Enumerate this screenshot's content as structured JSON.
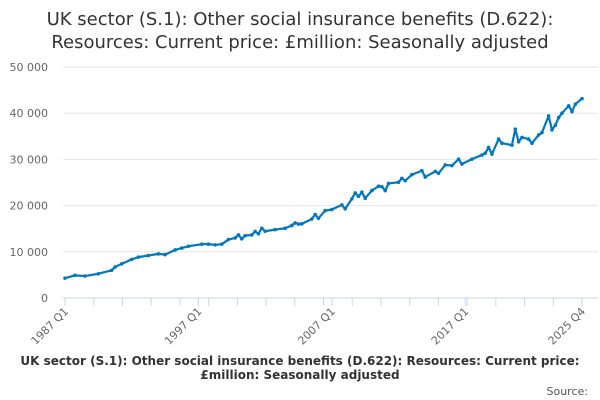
{
  "chart_data": {
    "type": "line",
    "title": "UK sector (S.1): Other social insurance benefits (D.622): Resources: Current price: £million: Seasonally adjusted",
    "footer_title": "UK sector (S.1): Other social insurance benefits (D.622): Resources: Current price: £million: Seasonally adjusted",
    "source_label": "Source:",
    "xlabel": "",
    "ylabel": "",
    "ylim": [
      0,
      50000
    ],
    "yticks": [
      0,
      10000,
      20000,
      30000,
      40000,
      50000
    ],
    "ytick_labels": [
      "0",
      "10 000",
      "20 000",
      "30 000",
      "40 000",
      "50 000"
    ],
    "xrange": [
      "1987 Q1",
      "2025 Q4"
    ],
    "xtick_labels": [
      "1987 Q1",
      "1997 Q1",
      "2007 Q1",
      "2017 Q1",
      "2025 Q4"
    ],
    "grid": true,
    "legend": "none",
    "color": "#0077c0",
    "points": [
      [
        "1987 Q1",
        4300
      ],
      [
        "1987 Q4",
        4900
      ],
      [
        "1988 Q3",
        4750
      ],
      [
        "1989 Q3",
        5250
      ],
      [
        "1990 Q3",
        6000
      ],
      [
        "1990 Q4",
        6700
      ],
      [
        "1991 Q2",
        7400
      ],
      [
        "1992 Q1",
        8350
      ],
      [
        "1992 Q3",
        8850
      ],
      [
        "1993 Q2",
        9200
      ],
      [
        "1994 Q1",
        9550
      ],
      [
        "1994 Q3",
        9400
      ],
      [
        "1995 Q2",
        10400
      ],
      [
        "1995 Q4",
        10800
      ],
      [
        "1996 Q2",
        11200
      ],
      [
        "1997 Q2",
        11650
      ],
      [
        "1997 Q4",
        11650
      ],
      [
        "1998 Q2",
        11500
      ],
      [
        "1998 Q4",
        11650
      ],
      [
        "1999 Q2",
        12650
      ],
      [
        "1999 Q4",
        13000
      ],
      [
        "2000 Q1",
        13650
      ],
      [
        "2000 Q2",
        12800
      ],
      [
        "2000 Q3",
        13500
      ],
      [
        "2001 Q1",
        13650
      ],
      [
        "2001 Q2",
        14400
      ],
      [
        "2001 Q3",
        13900
      ],
      [
        "2001 Q4",
        15100
      ],
      [
        "2002 Q1",
        14450
      ],
      [
        "2002 Q4",
        14800
      ],
      [
        "2003 Q3",
        15100
      ],
      [
        "2004 Q1",
        15700
      ],
      [
        "2004 Q2",
        16250
      ],
      [
        "2004 Q3",
        16000
      ],
      [
        "2004 Q4",
        16050
      ],
      [
        "2005 Q3",
        17100
      ],
      [
        "2005 Q4",
        18050
      ],
      [
        "2006 Q1",
        17250
      ],
      [
        "2006 Q3",
        18900
      ],
      [
        "2007 Q1",
        19150
      ],
      [
        "2007 Q4",
        20150
      ],
      [
        "2008 Q1",
        19300
      ],
      [
        "2008 Q3",
        21450
      ],
      [
        "2008 Q4",
        22750
      ],
      [
        "2009 Q1",
        22000
      ],
      [
        "2009 Q2",
        22900
      ],
      [
        "2009 Q3",
        21600
      ],
      [
        "2010 Q1",
        23250
      ],
      [
        "2010 Q3",
        24200
      ],
      [
        "2010 Q4",
        24100
      ],
      [
        "2011 Q1",
        23250
      ],
      [
        "2011 Q2",
        24800
      ],
      [
        "2012 Q1",
        25050
      ],
      [
        "2012 Q2",
        25900
      ],
      [
        "2012 Q3",
        25400
      ],
      [
        "2013 Q1",
        26700
      ],
      [
        "2013 Q4",
        27550
      ],
      [
        "2014 Q1",
        26200
      ],
      [
        "2014 Q4",
        27400
      ],
      [
        "2015 Q1",
        27000
      ],
      [
        "2015 Q3",
        28800
      ],
      [
        "2016 Q1",
        28650
      ],
      [
        "2016 Q3",
        30050
      ],
      [
        "2016 Q4",
        29000
      ],
      [
        "2017 Q3",
        30050
      ],
      [
        "2018 Q2",
        30950
      ],
      [
        "2018 Q3",
        31350
      ],
      [
        "2018 Q4",
        32600
      ],
      [
        "2019 Q1",
        31150
      ],
      [
        "2019 Q3",
        34400
      ],
      [
        "2019 Q4",
        33500
      ],
      [
        "2020 Q3",
        33100
      ],
      [
        "2020 Q4",
        36550
      ],
      [
        "2021 Q1",
        33800
      ],
      [
        "2021 Q2",
        34750
      ],
      [
        "2021 Q4",
        34400
      ],
      [
        "2022 Q1",
        33500
      ],
      [
        "2022 Q3",
        35300
      ],
      [
        "2022 Q4",
        35800
      ],
      [
        "2023 Q2",
        39400
      ],
      [
        "2023 Q3",
        36400
      ],
      [
        "2023 Q4",
        37400
      ],
      [
        "2024 Q1",
        39050
      ],
      [
        "2024 Q2",
        40000
      ],
      [
        "2024 Q4",
        41600
      ],
      [
        "2025 Q1",
        40350
      ],
      [
        "2025 Q2",
        41950
      ],
      [
        "2025 Q4",
        43150
      ]
    ]
  }
}
